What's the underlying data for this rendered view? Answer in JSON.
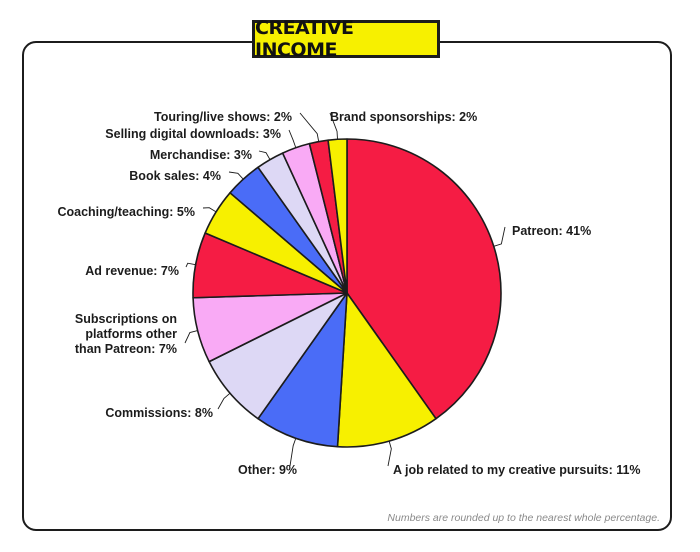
{
  "title": "CREATIVE INCOME",
  "footnote": "Numbers are rounded up to the nearest whole percentage.",
  "chart_data": {
    "type": "pie",
    "title": "CREATIVE INCOME",
    "slices": [
      {
        "key": "patreon",
        "label": [
          "Patreon: 41%"
        ],
        "value": 41,
        "color": "#f51c44"
      },
      {
        "key": "creative_job",
        "label": [
          "A job related to my creative pursuits: 11%"
        ],
        "value": 11,
        "color": "#f7f000"
      },
      {
        "key": "other",
        "label": [
          "Other: 9%"
        ],
        "value": 9,
        "color": "#4a6cf7"
      },
      {
        "key": "commissions",
        "label": [
          "Commissions: 8%"
        ],
        "value": 8,
        "color": "#ddd8f5"
      },
      {
        "key": "subscriptions",
        "label": [
          "Subscriptions on",
          "platforms other",
          "than Patreon: 7%"
        ],
        "value": 7,
        "color": "#f9aaf5"
      },
      {
        "key": "ad_revenue",
        "label": [
          "Ad revenue: 7%"
        ],
        "value": 7,
        "color": "#f51c44"
      },
      {
        "key": "coaching",
        "label": [
          "Coaching/teaching: 5%"
        ],
        "value": 5,
        "color": "#f7f000"
      },
      {
        "key": "book_sales",
        "label": [
          "Book sales: 4%"
        ],
        "value": 4,
        "color": "#4a6cf7"
      },
      {
        "key": "merchandise",
        "label": [
          "Merchandise: 3%"
        ],
        "value": 3,
        "color": "#ddd8f5"
      },
      {
        "key": "digital",
        "label": [
          "Selling digital downloads: 3%"
        ],
        "value": 3,
        "color": "#f9aaf5"
      },
      {
        "key": "touring",
        "label": [
          "Touring/live shows: 2%"
        ],
        "value": 2,
        "color": "#f51c44"
      },
      {
        "key": "sponsorships",
        "label": [
          "Brand sponsorships: 2%"
        ],
        "value": 2,
        "color": "#f7f000"
      }
    ],
    "outline_color": "#1c1c1c"
  }
}
